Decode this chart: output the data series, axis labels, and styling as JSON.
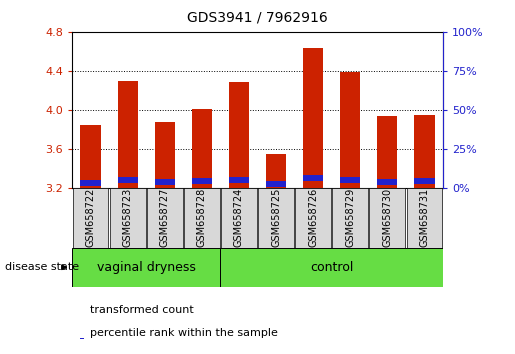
{
  "title": "GDS3941 / 7962916",
  "categories": [
    "GSM658722",
    "GSM658723",
    "GSM658727",
    "GSM658728",
    "GSM658724",
    "GSM658725",
    "GSM658726",
    "GSM658729",
    "GSM658730",
    "GSM658731"
  ],
  "red_values": [
    3.84,
    4.3,
    3.87,
    4.01,
    4.28,
    3.55,
    4.63,
    4.39,
    3.94,
    3.95
  ],
  "blue_values": [
    3.22,
    3.25,
    3.23,
    3.24,
    3.25,
    3.21,
    3.27,
    3.25,
    3.23,
    3.24
  ],
  "blue_heights": [
    0.055,
    0.055,
    0.055,
    0.055,
    0.055,
    0.055,
    0.055,
    0.055,
    0.055,
    0.055
  ],
  "ymin": 3.2,
  "ymax": 4.8,
  "yticks": [
    3.2,
    3.6,
    4.0,
    4.4,
    4.8
  ],
  "y2ticks": [
    0,
    25,
    50,
    75,
    100
  ],
  "y2labels": [
    "0%",
    "25%",
    "50%",
    "75%",
    "100%"
  ],
  "group1_label": "vaginal dryness",
  "group2_label": "control",
  "group1_count": 4,
  "disease_state_label": "disease state",
  "legend1": "transformed count",
  "legend2": "percentile rank within the sample",
  "red_color": "#cc2200",
  "blue_color": "#2222cc",
  "bar_width": 0.55,
  "bg_color": "#d8d8d8",
  "green_color": "#66dd44",
  "title_fontsize": 10,
  "tick_fontsize": 8,
  "label_fontsize": 7,
  "group_fontsize": 9,
  "legend_fontsize": 8
}
